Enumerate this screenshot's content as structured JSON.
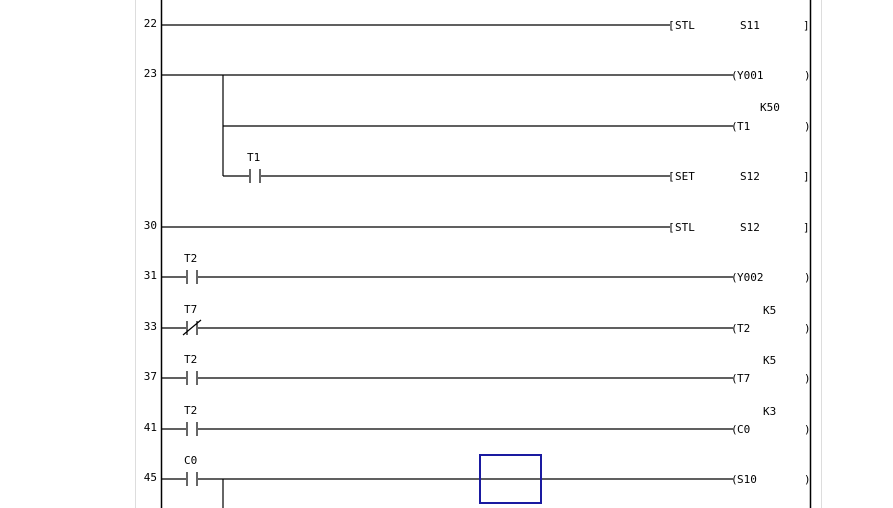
{
  "editor": {
    "cursor_color": "#1a1aa0",
    "rungs": [
      {
        "step": "22",
        "contacts": [],
        "outputs": [
          {
            "kind": "instruction",
            "op": "STL",
            "operand": "S11"
          }
        ]
      },
      {
        "step": "23",
        "contacts": [],
        "outputs": [
          {
            "kind": "coil",
            "device": "Y001"
          },
          {
            "kind": "coil",
            "device": "T1",
            "setting": "K50"
          },
          {
            "kind": "instruction",
            "op": "SET",
            "operand": "S12",
            "contact": {
              "device": "T1",
              "type": "NO"
            }
          }
        ]
      },
      {
        "step": "30",
        "contacts": [],
        "outputs": [
          {
            "kind": "instruction",
            "op": "STL",
            "operand": "S12"
          }
        ]
      },
      {
        "step": "31",
        "contacts": [
          {
            "device": "T2",
            "type": "NO"
          }
        ],
        "outputs": [
          {
            "kind": "coil",
            "device": "Y002"
          }
        ]
      },
      {
        "step": "33",
        "contacts": [
          {
            "device": "T7",
            "type": "NC"
          }
        ],
        "outputs": [
          {
            "kind": "coil",
            "device": "T2",
            "setting": "K5"
          }
        ]
      },
      {
        "step": "37",
        "contacts": [
          {
            "device": "T2",
            "type": "NO"
          }
        ],
        "outputs": [
          {
            "kind": "coil",
            "device": "T7",
            "setting": "K5"
          }
        ]
      },
      {
        "step": "41",
        "contacts": [
          {
            "device": "T2",
            "type": "NO"
          }
        ],
        "outputs": [
          {
            "kind": "coil",
            "device": "C0",
            "setting": "K3"
          }
        ]
      },
      {
        "step": "45",
        "contacts": [
          {
            "device": "C0",
            "type": "NO"
          }
        ],
        "outputs": [
          {
            "kind": "coil",
            "device": "S10"
          }
        ]
      }
    ]
  }
}
